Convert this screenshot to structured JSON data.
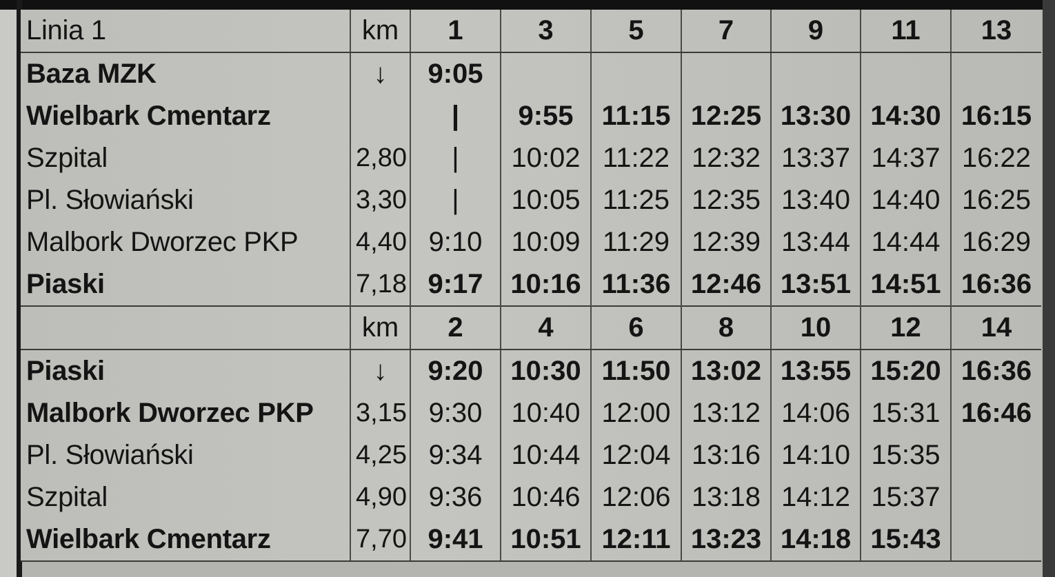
{
  "title": "Linia 1",
  "km_label": "km",
  "section1": {
    "courses": [
      "1",
      "3",
      "5",
      "7",
      "9",
      "11",
      "13"
    ],
    "rows": [
      {
        "name": "Baza MZK",
        "bold": true,
        "km": "↓",
        "times": [
          "9:05",
          "",
          "",
          "",
          "",
          "",
          ""
        ],
        "bold_cols": [
          0
        ]
      },
      {
        "name": "Wielbark Cmentarz",
        "bold": true,
        "km": "",
        "times": [
          "|",
          "9:55",
          "11:15",
          "12:25",
          "13:30",
          "14:30",
          "16:15"
        ],
        "bold_cols": [
          0,
          1,
          2,
          3,
          4,
          5,
          6
        ]
      },
      {
        "name": "Szpital",
        "bold": false,
        "km": "2,80",
        "times": [
          "|",
          "10:02",
          "11:22",
          "12:32",
          "13:37",
          "14:37",
          "16:22"
        ],
        "bold_cols": []
      },
      {
        "name": "Pl. Słowiański",
        "bold": false,
        "km": "3,30",
        "times": [
          "|",
          "10:05",
          "11:25",
          "12:35",
          "13:40",
          "14:40",
          "16:25"
        ],
        "bold_cols": []
      },
      {
        "name": "Malbork Dworzec PKP",
        "bold": false,
        "km": "4,40",
        "times": [
          "9:10",
          "10:09",
          "11:29",
          "12:39",
          "13:44",
          "14:44",
          "16:29"
        ],
        "bold_cols": []
      },
      {
        "name": "Piaski",
        "bold": true,
        "km": "7,18",
        "times": [
          "9:17",
          "10:16",
          "11:36",
          "12:46",
          "13:51",
          "14:51",
          "16:36"
        ],
        "bold_cols": [
          0,
          1,
          2,
          3,
          4,
          5,
          6
        ]
      }
    ]
  },
  "section2": {
    "courses": [
      "2",
      "4",
      "6",
      "8",
      "10",
      "12",
      "14"
    ],
    "rows": [
      {
        "name": "Piaski",
        "bold": true,
        "km": "↓",
        "times": [
          "9:20",
          "10:30",
          "11:50",
          "13:02",
          "13:55",
          "15:20",
          "16:36"
        ],
        "bold_cols": [
          0,
          1,
          2,
          3,
          4,
          5,
          6
        ]
      },
      {
        "name": "Malbork Dworzec PKP",
        "bold": true,
        "km": "3,15",
        "times": [
          "9:30",
          "10:40",
          "12:00",
          "13:12",
          "14:06",
          "15:31",
          "16:46"
        ],
        "bold_cols": [
          6
        ]
      },
      {
        "name": "Pl. Słowiański",
        "bold": false,
        "km": "4,25",
        "times": [
          "9:34",
          "10:44",
          "12:04",
          "13:16",
          "14:10",
          "15:35",
          ""
        ],
        "bold_cols": []
      },
      {
        "name": "Szpital",
        "bold": false,
        "km": "4,90",
        "times": [
          "9:36",
          "10:46",
          "12:06",
          "13:18",
          "14:12",
          "15:37",
          ""
        ],
        "bold_cols": []
      },
      {
        "name": "Wielbark Cmentarz",
        "bold": true,
        "km": "7,70",
        "times": [
          "9:41",
          "10:51",
          "12:11",
          "13:23",
          "14:18",
          "15:43",
          ""
        ],
        "bold_cols": [
          0,
          1,
          2,
          3,
          4,
          5
        ]
      }
    ]
  }
}
